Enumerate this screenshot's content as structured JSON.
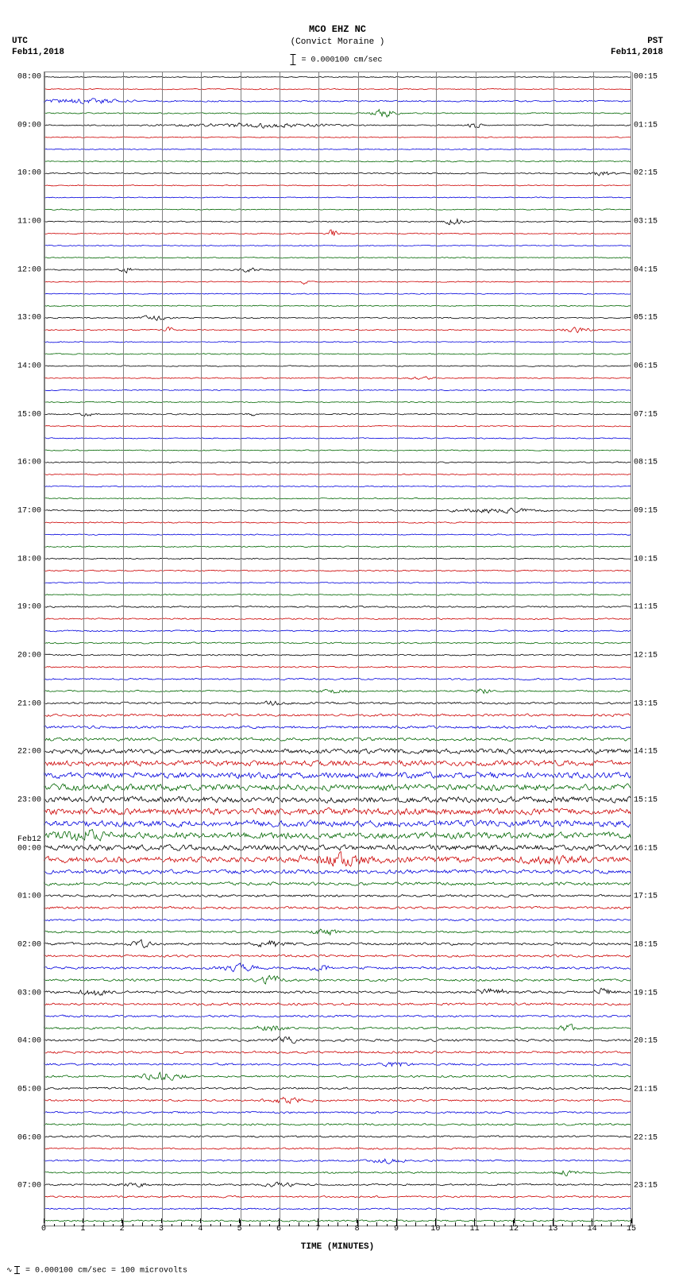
{
  "header": {
    "title": "MCO EHZ NC",
    "subtitle": "(Convict Moraine )",
    "scale_text": " = 0.000100 cm/sec"
  },
  "tz_left": {
    "tz": "UTC",
    "date": "Feb11,2018"
  },
  "tz_right": {
    "tz": "PST",
    "date": "Feb11,2018"
  },
  "plot": {
    "x_minutes": 15,
    "x_major_step": 1,
    "xlabel": "TIME (MINUTES)",
    "trace_colors": [
      "#000000",
      "#cc0000",
      "#0000dd",
      "#006600"
    ],
    "grid_color": "#808080",
    "grid_minor_color": "#c0c0c0",
    "background": "#ffffff",
    "n_traces": 96,
    "hour_labels_left": [
      {
        "idx": 0,
        "t": "08:00"
      },
      {
        "idx": 4,
        "t": "09:00"
      },
      {
        "idx": 8,
        "t": "10:00"
      },
      {
        "idx": 12,
        "t": "11:00"
      },
      {
        "idx": 16,
        "t": "12:00"
      },
      {
        "idx": 20,
        "t": "13:00"
      },
      {
        "idx": 24,
        "t": "14:00"
      },
      {
        "idx": 28,
        "t": "15:00"
      },
      {
        "idx": 32,
        "t": "16:00"
      },
      {
        "idx": 36,
        "t": "17:00"
      },
      {
        "idx": 40,
        "t": "18:00"
      },
      {
        "idx": 44,
        "t": "19:00"
      },
      {
        "idx": 48,
        "t": "20:00"
      },
      {
        "idx": 52,
        "t": "21:00"
      },
      {
        "idx": 56,
        "t": "22:00"
      },
      {
        "idx": 60,
        "t": "23:00"
      },
      {
        "idx": 64,
        "t": "00:00"
      },
      {
        "idx": 68,
        "t": "01:00"
      },
      {
        "idx": 72,
        "t": "02:00"
      },
      {
        "idx": 76,
        "t": "03:00"
      },
      {
        "idx": 80,
        "t": "04:00"
      },
      {
        "idx": 84,
        "t": "05:00"
      },
      {
        "idx": 88,
        "t": "06:00"
      },
      {
        "idx": 92,
        "t": "07:00"
      }
    ],
    "date_labels_left": [
      {
        "idx": 63,
        "t": "Feb12"
      }
    ],
    "hour_labels_right": [
      {
        "idx": 0,
        "t": "00:15"
      },
      {
        "idx": 4,
        "t": "01:15"
      },
      {
        "idx": 8,
        "t": "02:15"
      },
      {
        "idx": 12,
        "t": "03:15"
      },
      {
        "idx": 16,
        "t": "04:15"
      },
      {
        "idx": 20,
        "t": "05:15"
      },
      {
        "idx": 24,
        "t": "06:15"
      },
      {
        "idx": 28,
        "t": "07:15"
      },
      {
        "idx": 32,
        "t": "08:15"
      },
      {
        "idx": 36,
        "t": "09:15"
      },
      {
        "idx": 40,
        "t": "10:15"
      },
      {
        "idx": 44,
        "t": "11:15"
      },
      {
        "idx": 48,
        "t": "12:15"
      },
      {
        "idx": 52,
        "t": "13:15"
      },
      {
        "idx": 56,
        "t": "14:15"
      },
      {
        "idx": 60,
        "t": "15:15"
      },
      {
        "idx": 64,
        "t": "16:15"
      },
      {
        "idx": 68,
        "t": "17:15"
      },
      {
        "idx": 72,
        "t": "18:15"
      },
      {
        "idx": 76,
        "t": "19:15"
      },
      {
        "idx": 80,
        "t": "20:15"
      },
      {
        "idx": 84,
        "t": "21:15"
      },
      {
        "idx": 88,
        "t": "22:15"
      },
      {
        "idx": 92,
        "t": "23:15"
      }
    ],
    "noise_amplitude": [
      1.2,
      1.2,
      1.8,
      1.5,
      1.5,
      1.2,
      1.2,
      1.5,
      1.5,
      1.2,
      1.2,
      1.3,
      1.4,
      1.3,
      1.2,
      1.3,
      1.4,
      1.3,
      1.2,
      1.3,
      1.4,
      1.3,
      1.2,
      1.3,
      1.3,
      1.4,
      1.3,
      1.3,
      1.4,
      1.4,
      1.3,
      1.3,
      1.4,
      1.3,
      1.3,
      1.4,
      1.8,
      1.5,
      1.4,
      1.5,
      1.5,
      1.5,
      1.4,
      1.5,
      2.0,
      1.8,
      1.8,
      1.8,
      1.8,
      1.8,
      2.0,
      2.0,
      2.5,
      3.0,
      3.5,
      4.0,
      6.0,
      7.0,
      7.5,
      8.0,
      7.5,
      8.0,
      8.0,
      8.0,
      7.0,
      7.5,
      5.0,
      4.0,
      3.0,
      3.0,
      2.5,
      2.5,
      3.0,
      3.0,
      3.0,
      3.0,
      3.0,
      3.0,
      2.5,
      2.5,
      2.8,
      2.8,
      2.5,
      2.5,
      2.5,
      2.5,
      2.5,
      2.3,
      2.3,
      2.0,
      2.0,
      2.0,
      2.2,
      2.2,
      2.0,
      2.0
    ],
    "events": [
      {
        "row": 2,
        "x": 1.0,
        "amp": 6,
        "w": 1.5
      },
      {
        "row": 3,
        "x": 8.7,
        "amp": 10,
        "w": 0.4
      },
      {
        "row": 4,
        "x": 5.5,
        "amp": 5,
        "w": 2.5
      },
      {
        "row": 4,
        "x": 11.0,
        "amp": 8,
        "w": 0.2
      },
      {
        "row": 8,
        "x": 14.3,
        "amp": 6,
        "w": 0.4
      },
      {
        "row": 12,
        "x": 10.5,
        "amp": 10,
        "w": 0.3
      },
      {
        "row": 13,
        "x": 7.4,
        "amp": 12,
        "w": 0.2
      },
      {
        "row": 16,
        "x": 2.1,
        "amp": 8,
        "w": 0.2
      },
      {
        "row": 16,
        "x": 5.2,
        "amp": 5,
        "w": 0.4
      },
      {
        "row": 17,
        "x": 6.6,
        "amp": 6,
        "w": 0.15
      },
      {
        "row": 20,
        "x": 2.8,
        "amp": 5,
        "w": 0.6
      },
      {
        "row": 21,
        "x": 3.2,
        "amp": 6,
        "w": 0.2
      },
      {
        "row": 21,
        "x": 13.6,
        "amp": 6,
        "w": 0.6
      },
      {
        "row": 25,
        "x": 9.7,
        "amp": 4,
        "w": 0.4
      },
      {
        "row": 28,
        "x": 1.1,
        "amp": 5,
        "w": 0.3
      },
      {
        "row": 28,
        "x": 5.3,
        "amp": 4,
        "w": 0.2
      },
      {
        "row": 36,
        "x": 11.5,
        "amp": 5,
        "w": 1.5
      },
      {
        "row": 51,
        "x": 7.4,
        "amp": 6,
        "w": 0.4
      },
      {
        "row": 51,
        "x": 11.2,
        "amp": 6,
        "w": 0.3
      },
      {
        "row": 52,
        "x": 5.9,
        "amp": 6,
        "w": 0.4
      },
      {
        "row": 63,
        "x": 1.0,
        "amp": 9,
        "w": 0.8
      },
      {
        "row": 65,
        "x": 7.5,
        "amp": 10,
        "w": 1.2
      },
      {
        "row": 65,
        "x": 13.0,
        "amp": 8,
        "w": 0.8
      },
      {
        "row": 71,
        "x": 7.2,
        "amp": 8,
        "w": 0.4
      },
      {
        "row": 72,
        "x": 5.8,
        "amp": 9,
        "w": 0.5
      },
      {
        "row": 72,
        "x": 2.5,
        "amp": 7,
        "w": 0.4
      },
      {
        "row": 74,
        "x": 5.0,
        "amp": 7,
        "w": 0.6
      },
      {
        "row": 74,
        "x": 7.1,
        "amp": 6,
        "w": 0.4
      },
      {
        "row": 75,
        "x": 5.8,
        "amp": 8,
        "w": 0.4
      },
      {
        "row": 76,
        "x": 1.3,
        "amp": 8,
        "w": 0.5
      },
      {
        "row": 76,
        "x": 11.5,
        "amp": 7,
        "w": 0.6
      },
      {
        "row": 76,
        "x": 14.3,
        "amp": 7,
        "w": 0.4
      },
      {
        "row": 79,
        "x": 5.8,
        "amp": 7,
        "w": 0.5
      },
      {
        "row": 79,
        "x": 13.4,
        "amp": 8,
        "w": 0.3
      },
      {
        "row": 80,
        "x": 6.2,
        "amp": 7,
        "w": 0.4
      },
      {
        "row": 82,
        "x": 9.0,
        "amp": 6,
        "w": 0.5
      },
      {
        "row": 83,
        "x": 3.0,
        "amp": 8,
        "w": 0.8
      },
      {
        "row": 85,
        "x": 6.2,
        "amp": 8,
        "w": 0.6
      },
      {
        "row": 90,
        "x": 8.8,
        "amp": 6,
        "w": 0.6
      },
      {
        "row": 91,
        "x": 13.3,
        "amp": 6,
        "w": 0.4
      },
      {
        "row": 92,
        "x": 2.4,
        "amp": 5,
        "w": 0.5
      },
      {
        "row": 92,
        "x": 6.0,
        "amp": 5,
        "w": 0.5
      }
    ]
  },
  "footer": {
    "text": " = 0.000100 cm/sec =    100 microvolts"
  }
}
